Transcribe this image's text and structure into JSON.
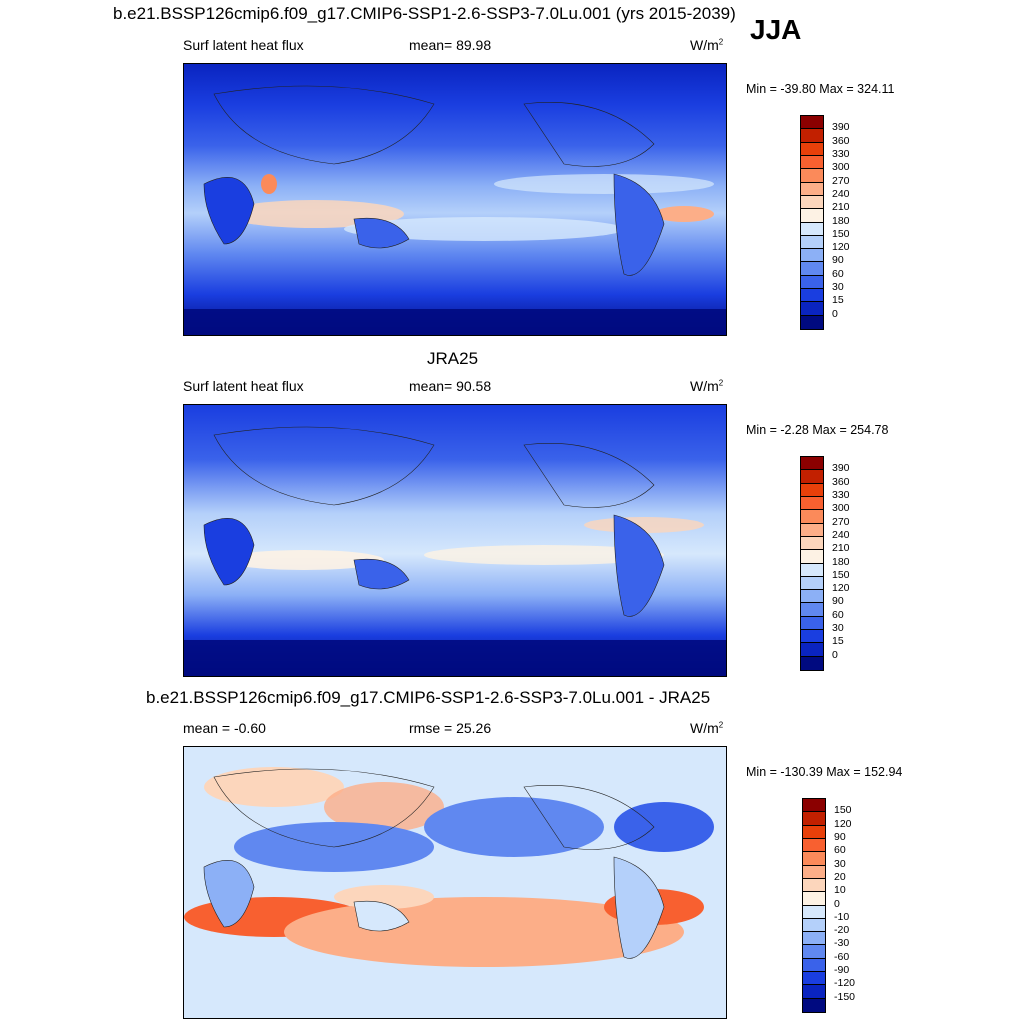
{
  "title_main": "b.e21.BSSP126cmip6.f09_g17.CMIP6-SSP1-2.6-SSP3-7.0Lu.001 (yrs 2015-2039)",
  "season": "JJA",
  "panels": [
    {
      "title": "",
      "left_label": "Surf latent heat flux",
      "center_label": "mean=  89.98",
      "unit_base": "W/m",
      "unit_exp": "2",
      "minmax": "Min = -39.80 Max = 324.11",
      "levels": [
        "390",
        "360",
        "330",
        "300",
        "270",
        "240",
        "210",
        "180",
        "150",
        "120",
        "90",
        "60",
        "30",
        "15",
        "0"
      ],
      "colors": [
        "#8b0000",
        "#c22000",
        "#e8400a",
        "#f86030",
        "#fb8a5a",
        "#fcae88",
        "#fcd6bc",
        "#fdf2e4",
        "#d6e8fc",
        "#b4d0fa",
        "#8cb0f6",
        "#6088f0",
        "#3a62ea",
        "#1a3ee0",
        "#0a24c0",
        "#000a80"
      ]
    },
    {
      "title": "JRA25",
      "left_label": "Surf latent heat flux",
      "center_label": "mean=  90.58",
      "unit_base": "W/m",
      "unit_exp": "2",
      "minmax": "Min =  -2.28 Max = 254.78",
      "levels": [
        "390",
        "360",
        "330",
        "300",
        "270",
        "240",
        "210",
        "180",
        "150",
        "120",
        "90",
        "60",
        "30",
        "15",
        "0"
      ],
      "colors": [
        "#8b0000",
        "#c22000",
        "#e8400a",
        "#f86030",
        "#fb8a5a",
        "#fcae88",
        "#fcd6bc",
        "#fdf2e4",
        "#d6e8fc",
        "#b4d0fa",
        "#8cb0f6",
        "#6088f0",
        "#3a62ea",
        "#1a3ee0",
        "#0a24c0",
        "#000a80"
      ]
    },
    {
      "title": "b.e21.BSSP126cmip6.f09_g17.CMIP6-SSP1-2.6-SSP3-7.0Lu.001 - JRA25",
      "left_label": "mean =  -0.60",
      "center_label": "rmse =  25.26",
      "unit_base": "W/m",
      "unit_exp": "2",
      "minmax": "Min = -130.39 Max = 152.94",
      "levels": [
        "150",
        "120",
        "90",
        "60",
        "30",
        "20",
        "10",
        "0",
        "-10",
        "-20",
        "-30",
        "-60",
        "-90",
        "-120",
        "-150"
      ],
      "colors": [
        "#8b0000",
        "#c22000",
        "#e8400a",
        "#f86030",
        "#fb8a5a",
        "#fcae88",
        "#fcd6bc",
        "#fdf2e4",
        "#d6e8fc",
        "#b4d0fa",
        "#8cb0f6",
        "#6088f0",
        "#3a62ea",
        "#1a3ee0",
        "#0a24c0",
        "#000a80"
      ]
    }
  ]
}
